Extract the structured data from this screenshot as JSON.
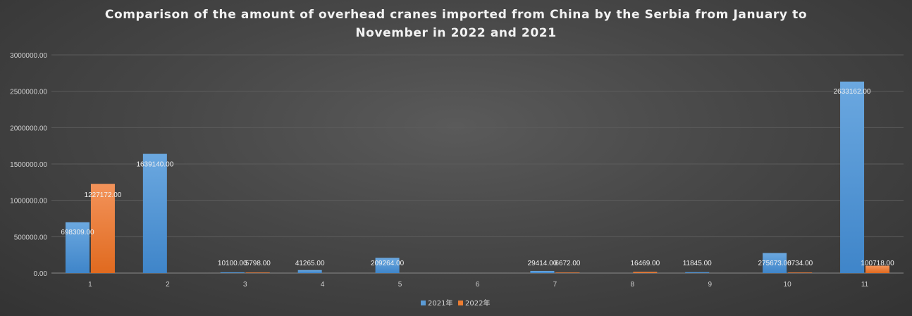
{
  "chart_data": {
    "type": "bar",
    "title_lines": [
      "Comparison of the amount of overhead cranes imported from China by the Serbia from January to",
      "November in 2022 and 2021"
    ],
    "xlabel": "",
    "ylabel": "",
    "categories": [
      "1",
      "2",
      "3",
      "4",
      "5",
      "6",
      "7",
      "8",
      "9",
      "10",
      "11"
    ],
    "ylim": [
      0,
      3000000
    ],
    "yticks": [
      0,
      500000,
      1000000,
      1500000,
      2000000,
      2500000,
      3000000
    ],
    "ytick_labels": [
      "0.00",
      "500000.00",
      "1000000.00",
      "1500000.00",
      "2000000.00",
      "2500000.00",
      "3000000.00"
    ],
    "grid": true,
    "legend_position": "bottom",
    "series": [
      {
        "name": "2021年",
        "color": "#5b9bd5",
        "values": [
          698309,
          1639140,
          10100,
          41265,
          209264,
          null,
          29414,
          null,
          11845,
          275673,
          2633162
        ],
        "labels": [
          "698309.00",
          "1639140.00",
          "10100.00",
          "41265.00",
          "209264.00",
          "",
          "29414.00",
          "",
          "11845.00",
          "275673.00",
          "2633162.00"
        ]
      },
      {
        "name": "2022年",
        "color": "#ed7d31",
        "values": [
          1227172,
          null,
          5798,
          null,
          null,
          null,
          6672,
          16469,
          null,
          6734,
          100718
        ],
        "labels": [
          "1227172.00",
          "",
          "5798.00",
          "",
          "",
          "",
          "6672.00",
          "16469.00",
          "",
          "6734.00",
          "100718.00"
        ]
      }
    ]
  }
}
